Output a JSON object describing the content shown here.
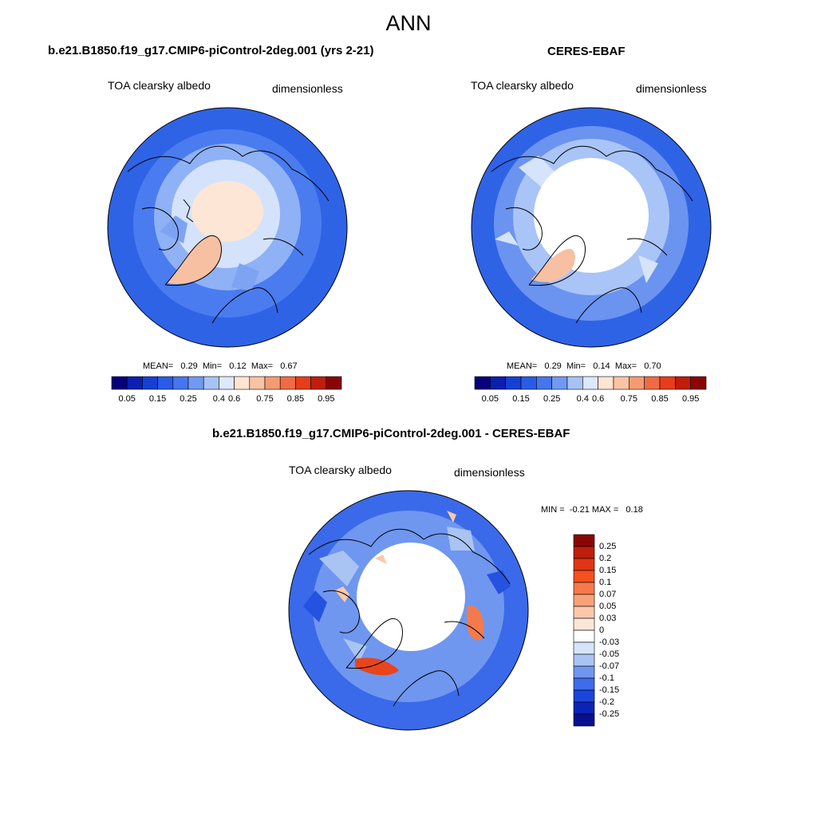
{
  "season": "ANN",
  "panels": {
    "model": {
      "case_title": "b.e21.B1850.f19_g17.CMIP6-piControl-2deg.001 (yrs 2-21)",
      "variable": "TOA clearsky albedo",
      "units": "dimensionless",
      "mean_label": "MEAN=",
      "mean": "0.29",
      "min_label": "Min=",
      "min": "0.12",
      "max_label": "Max=",
      "max": "0.67"
    },
    "obs": {
      "case_title": "CERES-EBAF",
      "variable": "TOA clearsky albedo",
      "units": "dimensionless",
      "mean_label": "MEAN=",
      "mean": "0.29",
      "min_label": "Min=",
      "min": "0.14",
      "max_label": "Max=",
      "max": "0.70"
    },
    "diff": {
      "case_title": "b.e21.B1850.f19_g17.CMIP6-piControl-2deg.001 - CERES-EBAF",
      "variable": "TOA clearsky albedo",
      "units": "dimensionless",
      "min_label": "MIN =",
      "min": "-0.21",
      "max_label": "MAX =",
      "max": "0.18"
    }
  },
  "colorbar_abs": {
    "ticks": [
      "0.05",
      "0.15",
      "0.25",
      "0.4",
      "0.6",
      "0.75",
      "0.85",
      "0.95"
    ],
    "colors": [
      "#08007a",
      "#0b1fb0",
      "#1440d4",
      "#2a5be8",
      "#4675f0",
      "#7099f2",
      "#a7c2f5",
      "#dce8fb",
      "#fde5d2",
      "#f9c3a4",
      "#f59b72",
      "#ef6b45",
      "#e83c1c",
      "#c01d0b",
      "#8a0606"
    ]
  },
  "colorbar_diff": {
    "ticks": [
      "0.25",
      "0.2",
      "0.15",
      "0.1",
      "0.07",
      "0.05",
      "0.03",
      "0",
      "-0.03",
      "-0.05",
      "-0.07",
      "-0.1",
      "-0.15",
      "-0.2",
      "-0.25"
    ],
    "colors": [
      "#8a0606",
      "#c01d0b",
      "#e03515",
      "#f55020",
      "#f7794c",
      "#f9a27a",
      "#fbc8aa",
      "#fbe7d8",
      "#ffffff",
      "#d6e4fa",
      "#a9c4f3",
      "#6f97ef",
      "#3e6ceb",
      "#1b45dd",
      "#0a24b8",
      "#07108e"
    ]
  }
}
